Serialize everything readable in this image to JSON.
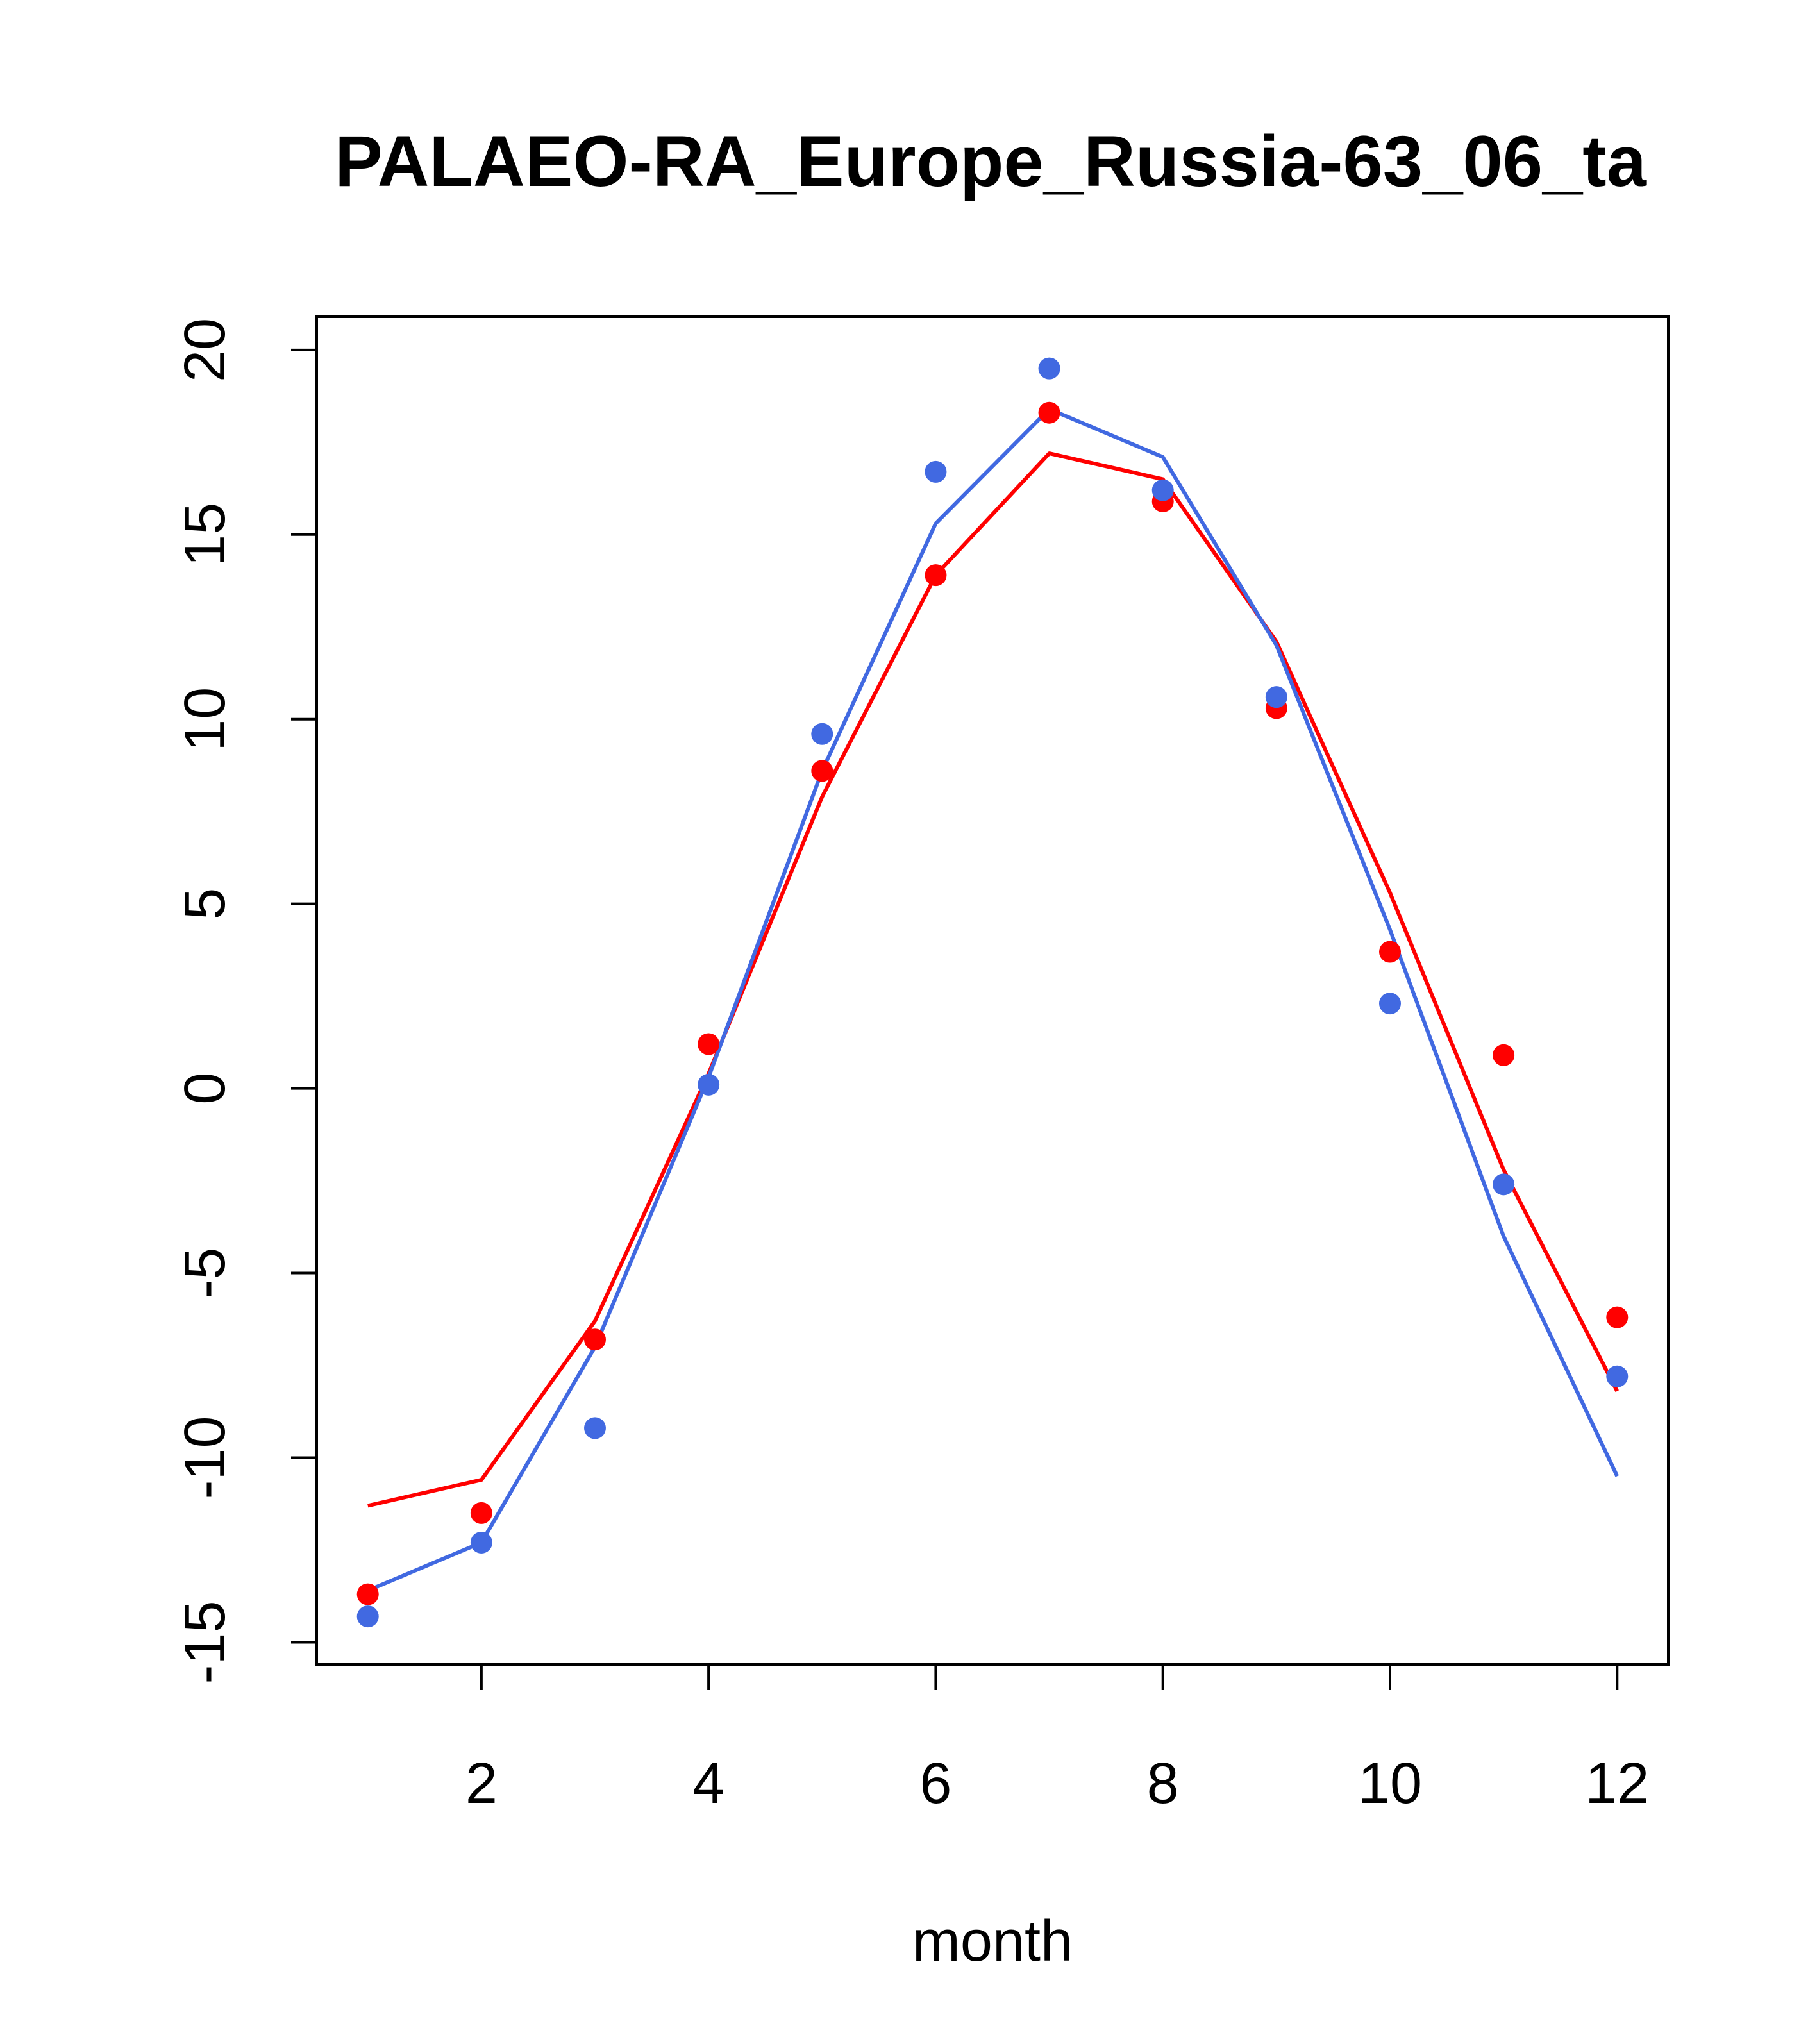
{
  "chart_data": {
    "type": "line",
    "title": "PALAEO-RA_Europe_Russia-63_06_ta",
    "xlabel": "month",
    "ylabel": "",
    "xlim": [
      0.55,
      12.45
    ],
    "ylim": [
      -15.6,
      20.9
    ],
    "x_ticks": [
      2,
      4,
      6,
      8,
      10,
      12
    ],
    "y_ticks": [
      -15,
      -10,
      -5,
      0,
      5,
      10,
      15,
      20
    ],
    "x_tick_labels": [
      "2",
      "4",
      "6",
      "8",
      "10",
      "12"
    ],
    "y_tick_labels": [
      "-15",
      "-10",
      "-5",
      "0",
      "5",
      "10",
      "15",
      "20"
    ],
    "grid": false,
    "legend": "none",
    "x": [
      1,
      2,
      3,
      4,
      5,
      6,
      7,
      8,
      9,
      10,
      11,
      12
    ],
    "series": [
      {
        "color": "#ff0000",
        "kind": "line",
        "values": [
          -11.3,
          -10.6,
          -6.3,
          0.4,
          7.9,
          13.9,
          17.2,
          16.5,
          12.1,
          5.3,
          -2.2,
          -8.2
        ]
      },
      {
        "color": "#4169e1",
        "kind": "line",
        "values": [
          -13.6,
          -12.3,
          -7.0,
          0.3,
          8.6,
          15.3,
          18.4,
          17.1,
          12.0,
          4.3,
          -4.0,
          -10.5
        ]
      },
      {
        "color": "#ff0000",
        "kind": "points",
        "values": [
          -13.7,
          -11.5,
          -6.8,
          1.2,
          8.6,
          13.9,
          18.3,
          15.9,
          10.3,
          3.7,
          0.9,
          -6.2
        ]
      },
      {
        "color": "#4169e1",
        "kind": "points",
        "values": [
          -14.3,
          -12.3,
          -9.2,
          0.1,
          9.6,
          16.7,
          19.5,
          16.2,
          10.6,
          2.3,
          -2.6,
          -7.8
        ]
      }
    ]
  }
}
